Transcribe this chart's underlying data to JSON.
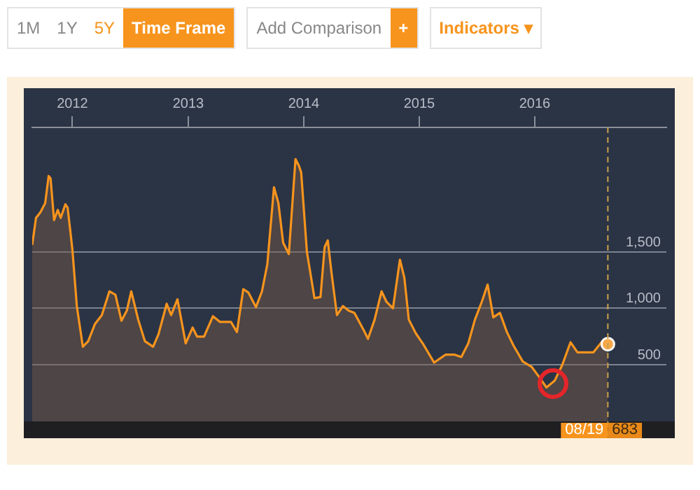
{
  "chart_data": {
    "type": "area",
    "x": [
      "2011-08-27",
      "2011-09-08",
      "2011-09-22",
      "2011-10-07",
      "2011-10-18",
      "2011-10-24",
      "2011-11-04",
      "2011-11-16",
      "2011-11-25",
      "2011-12-10",
      "2011-12-17",
      "2012-01-01",
      "2012-01-15",
      "2012-02-03",
      "2012-02-20",
      "2012-03-12",
      "2012-04-03",
      "2012-04-27",
      "2012-05-16",
      "2012-06-04",
      "2012-06-21",
      "2012-07-05",
      "2012-07-27",
      "2012-08-17",
      "2012-09-12",
      "2012-09-29",
      "2012-10-25",
      "2012-11-08",
      "2012-11-28",
      "2012-12-24",
      "2013-01-15",
      "2013-01-29",
      "2013-02-20",
      "2013-03-20",
      "2013-04-11",
      "2013-05-16",
      "2013-06-04",
      "2013-06-24",
      "2013-07-10",
      "2013-08-03",
      "2013-08-22",
      "2013-09-08",
      "2013-09-29",
      "2013-10-13",
      "2013-10-28",
      "2013-11-15",
      "2013-12-06",
      "2013-12-17",
      "2013-12-24",
      "2014-01-11",
      "2014-02-04",
      "2014-02-23",
      "2014-03-08",
      "2014-03-18",
      "2014-03-30",
      "2014-04-16",
      "2014-05-05",
      "2014-05-23",
      "2014-06-10",
      "2014-07-09",
      "2014-07-23",
      "2014-08-13",
      "2014-09-04",
      "2014-09-19",
      "2014-10-10",
      "2014-11-01",
      "2014-11-15",
      "2014-11-29",
      "2014-12-21",
      "2015-01-12",
      "2015-02-17",
      "2015-03-25",
      "2015-04-23",
      "2015-05-14",
      "2015-06-05",
      "2015-06-26",
      "2015-07-18",
      "2015-08-05",
      "2015-08-23",
      "2015-09-13",
      "2015-10-05",
      "2015-10-26",
      "2015-11-24",
      "2015-12-23",
      "2016-01-13",
      "2016-02-07",
      "2016-03-04",
      "2016-03-28",
      "2016-04-23",
      "2016-05-15",
      "2016-07-04",
      "2016-08-02",
      "2016-08-19"
    ],
    "series": [
      {
        "color": "#f7941d",
        "values": [
          1560,
          1800,
          1850,
          1930,
          2170,
          2150,
          1780,
          1870,
          1800,
          1920,
          1890,
          1520,
          1020,
          660,
          710,
          860,
          940,
          1150,
          1120,
          890,
          980,
          1150,
          900,
          710,
          660,
          770,
          1040,
          940,
          1080,
          690,
          830,
          750,
          750,
          930,
          880,
          880,
          790,
          1170,
          1140,
          1010,
          1150,
          1390,
          2070,
          1930,
          1580,
          1480,
          2320,
          2260,
          2200,
          1500,
          1090,
          1100,
          1540,
          1600,
          1310,
          940,
          1020,
          980,
          960,
          810,
          730,
          900,
          1150,
          1060,
          1000,
          1430,
          1270,
          900,
          780,
          690,
          520,
          590,
          590,
          570,
          690,
          900,
          1060,
          1210,
          920,
          960,
          790,
          670,
          530,
          480,
          400,
          300,
          360,
          500,
          700,
          610,
          610,
          710,
          683
        ]
      }
    ],
    "xlim": [
      "2011-08-27",
      "2017-02-20"
    ],
    "xticks": [
      {
        "value": "2012-01-01",
        "label": "2012"
      },
      {
        "value": "2013-01-01",
        "label": "2013"
      },
      {
        "value": "2014-01-01",
        "label": "2014"
      },
      {
        "value": "2015-01-01",
        "label": "2015"
      },
      {
        "value": "2016-01-01",
        "label": "2016"
      }
    ],
    "ylim": [
      0,
      2600
    ],
    "yticks": [
      {
        "value": 500,
        "label": "500"
      },
      {
        "value": 1000,
        "label": "1,000"
      },
      {
        "value": 1500,
        "label": "1,500"
      }
    ],
    "grid": "y",
    "legend": false,
    "marker": "none",
    "line_style": "solid",
    "ref_lines": [
      {
        "axis": "x",
        "value": "2016-08-19",
        "label": "08/19",
        "color": "#c9a04a",
        "line_style": "dashed"
      }
    ],
    "annotations": [
      "1M",
      "1Y",
      "5Y",
      "Time Frame",
      "Add Comparison",
      "+",
      "Indicators ▾",
      "683"
    ]
  }
}
